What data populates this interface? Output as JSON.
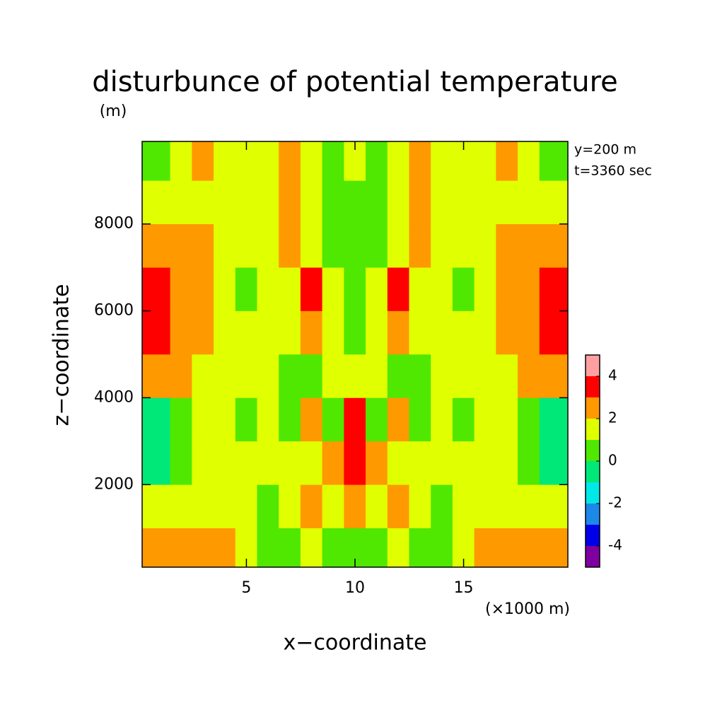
{
  "chart_data": {
    "type": "contour",
    "title": "disturbunce of potential temperature",
    "y_unit": "(m)",
    "x_unit": "(×1000 m)",
    "x_label": "x−coordinate",
    "y_label": "z−coordinate",
    "annotations": [
      "y=200 m",
      "t=3360 sec"
    ],
    "xlim": [
      0.2,
      19.8
    ],
    "ylim": [
      100,
      9900
    ],
    "xticks": [
      5,
      10,
      15
    ],
    "yticks": [
      2000,
      4000,
      6000,
      8000
    ],
    "x": [
      1,
      2,
      3,
      4,
      5,
      6,
      7,
      8,
      9,
      10,
      11,
      12,
      13,
      14,
      15,
      16,
      17,
      18,
      19
    ],
    "z": [
      500,
      1500,
      2500,
      3500,
      4500,
      5500,
      6500,
      7500,
      8500,
      9500
    ],
    "values": [
      [
        2.5,
        2.5,
        2.5,
        2.5,
        1.5,
        0.5,
        0.5,
        1.5,
        0.5,
        0.5,
        0.5,
        1.5,
        0.5,
        0.5,
        1.5,
        2.5,
        2.5,
        2.5,
        2.5
      ],
      [
        1.5,
        1.5,
        1.5,
        1.5,
        1.5,
        0.5,
        1.5,
        2.5,
        1.5,
        2.5,
        1.5,
        2.5,
        1.5,
        0.5,
        1.5,
        1.5,
        1.5,
        1.5,
        1.5
      ],
      [
        -0.5,
        0.5,
        1.5,
        1.5,
        1.5,
        1.5,
        1.5,
        1.5,
        2.5,
        3.5,
        2.5,
        1.5,
        1.5,
        1.5,
        1.5,
        1.5,
        1.5,
        0.5,
        -0.5
      ],
      [
        -0.5,
        0.5,
        1.5,
        1.5,
        0.5,
        1.5,
        0.5,
        2.5,
        0.5,
        3.5,
        0.5,
        2.5,
        0.5,
        1.5,
        0.5,
        1.5,
        1.5,
        0.5,
        -0.5
      ],
      [
        2.5,
        2.5,
        1.5,
        1.5,
        1.5,
        1.5,
        0.5,
        0.5,
        1.5,
        1.5,
        1.5,
        0.5,
        0.5,
        1.5,
        1.5,
        1.5,
        1.5,
        2.5,
        2.5
      ],
      [
        3.5,
        2.5,
        2.5,
        1.5,
        1.5,
        1.5,
        1.5,
        2.5,
        1.5,
        0.5,
        1.5,
        2.5,
        1.5,
        1.5,
        1.5,
        1.5,
        2.5,
        2.5,
        3.5
      ],
      [
        3.5,
        2.5,
        2.5,
        1.5,
        0.5,
        1.5,
        1.5,
        3.5,
        1.5,
        0.5,
        1.5,
        3.5,
        1.5,
        1.5,
        0.5,
        1.5,
        2.5,
        2.5,
        3.5
      ],
      [
        2.5,
        2.5,
        2.5,
        1.5,
        1.5,
        1.5,
        2.5,
        1.5,
        0.5,
        0.5,
        0.5,
        1.5,
        2.5,
        1.5,
        1.5,
        1.5,
        2.5,
        2.5,
        2.5
      ],
      [
        1.5,
        1.5,
        1.5,
        1.5,
        1.5,
        1.5,
        2.5,
        1.5,
        0.5,
        0.5,
        0.5,
        1.5,
        2.5,
        1.5,
        1.5,
        1.5,
        1.5,
        1.5,
        1.5
      ],
      [
        0.5,
        1.5,
        2.5,
        1.5,
        1.5,
        1.5,
        2.5,
        1.5,
        0.5,
        1.5,
        0.5,
        1.5,
        2.5,
        1.5,
        1.5,
        1.5,
        2.5,
        1.5,
        0.5
      ]
    ],
    "levels": [
      -5,
      -4,
      -3,
      -2,
      -1,
      0,
      1,
      2,
      3,
      4,
      5
    ],
    "colors": [
      "#7f00a0",
      "#0000e8",
      "#1e88e8",
      "#00e8e8",
      "#00e878",
      "#50e800",
      "#e0ff00",
      "#ff9900",
      "#ff0000",
      "#ffa0a0"
    ],
    "cbar_ticks": [
      -4,
      -2,
      0,
      2,
      4
    ]
  }
}
